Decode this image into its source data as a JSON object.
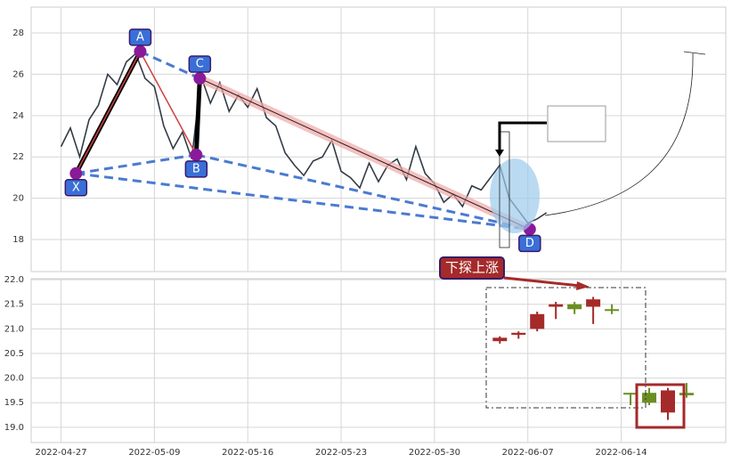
{
  "chart_data": [
    {
      "type": "line",
      "x": [
        0,
        0.5,
        1,
        1.5,
        2,
        2.5,
        3,
        3.5,
        4,
        4.5,
        5,
        5.5,
        6,
        6.5,
        7,
        7.5,
        8,
        8.5,
        9,
        9.5,
        10,
        10.5,
        11,
        11.5,
        12,
        12.5,
        13,
        13.5,
        14,
        14.5,
        15,
        15.5,
        16,
        16.5,
        17,
        17.5,
        18,
        18.5,
        19,
        19.5,
        20,
        20.5,
        21,
        21.5,
        22,
        22.5,
        23,
        23.5,
        24,
        24.5,
        25,
        25.5,
        26
      ],
      "series": [
        {
          "color": "#333b45",
          "values": [
            22.5,
            23.4,
            22.0,
            23.8,
            24.5,
            26.0,
            25.5,
            26.6,
            27.0,
            25.8,
            25.4,
            23.5,
            22.4,
            23.2,
            21.9,
            25.9,
            24.6,
            25.6,
            24.2,
            25.0,
            24.4,
            25.3,
            23.9,
            23.5,
            22.2,
            21.6,
            21.1,
            21.8,
            22.0,
            22.8,
            21.3,
            21.0,
            20.5,
            21.7,
            20.8,
            21.6,
            21.9,
            20.9,
            22.5,
            21.2,
            20.7,
            19.8,
            20.2,
            19.6,
            20.6,
            20.4,
            21.0,
            21.6,
            20.0,
            19.4,
            18.8,
            19.0,
            19.3
          ]
        }
      ],
      "pattern": {
        "labels": [
          "X",
          "A",
          "B",
          "C",
          "D"
        ],
        "x": [
          0.8,
          4.24,
          7.24,
          7.43,
          25.1
        ],
        "y": [
          21.2,
          27.1,
          22.1,
          25.8,
          18.5
        ]
      },
      "xlim": [
        -1.6,
        35.6
      ],
      "xticks": [
        0,
        5,
        10,
        15,
        20,
        25,
        30
      ],
      "ylim": [
        16.45,
        29.25
      ],
      "yticks": [
        18,
        20,
        22,
        24,
        26,
        28
      ],
      "grid": true
    },
    {
      "type": "candlestick",
      "x": [
        23.5,
        24.5,
        25.5,
        26.5,
        27.5,
        28.5,
        29.5,
        30.5,
        31.5,
        32.5,
        33.5
      ],
      "open": [
        20.75,
        20.88,
        21.0,
        21.45,
        21.5,
        21.45,
        21.4,
        19.7,
        19.7,
        19.3,
        19.7
      ],
      "close": [
        20.82,
        20.92,
        21.3,
        21.5,
        21.4,
        21.6,
        21.38,
        19.68,
        19.5,
        19.75,
        19.65
      ],
      "high": [
        20.85,
        20.95,
        21.35,
        21.55,
        21.55,
        21.65,
        21.5,
        19.7,
        19.8,
        19.8,
        19.9
      ],
      "low": [
        20.7,
        20.8,
        20.95,
        21.2,
        21.3,
        21.1,
        21.3,
        19.45,
        19.45,
        19.15,
        19.6
      ],
      "up_color": "#a52a2a",
      "down_color": "#6b8e23",
      "annotation": "下探上涨",
      "xlim": [
        -1.6,
        35.6
      ],
      "xticks": [
        {
          "value": 0,
          "label": "2022-04-27"
        },
        {
          "value": 5,
          "label": "2022-05-09"
        },
        {
          "value": 10,
          "label": "2022-05-16"
        },
        {
          "value": 15,
          "label": "2022-05-23"
        },
        {
          "value": 20,
          "label": "2022-05-30"
        },
        {
          "value": 25,
          "label": "2022-06-07"
        },
        {
          "value": 30,
          "label": "2022-06-14"
        }
      ],
      "ylim": [
        18.69,
        22.02
      ],
      "yticks": [
        {
          "value": 19,
          "label": "19.0"
        },
        {
          "value": 19.5,
          "label": "19.5"
        },
        {
          "value": 20,
          "label": "20.0"
        },
        {
          "value": 20.5,
          "label": "20.5"
        },
        {
          "value": 21,
          "label": "21.0"
        },
        {
          "value": 21.5,
          "label": "21.5"
        },
        {
          "value": 22,
          "label": "22.0"
        }
      ],
      "grid": true
    }
  ]
}
